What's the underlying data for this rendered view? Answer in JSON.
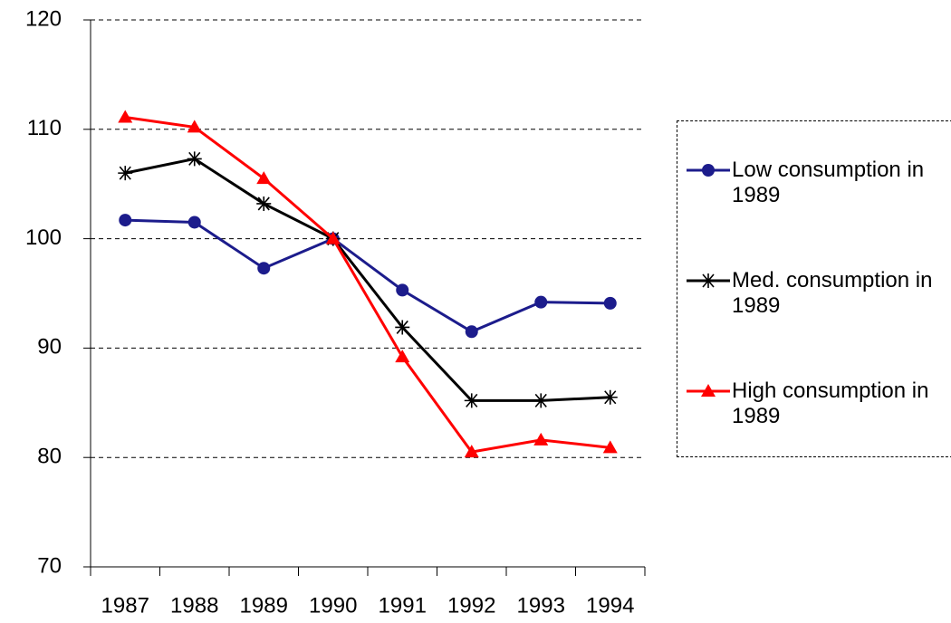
{
  "chart_data": {
    "type": "line",
    "categories": [
      "1987",
      "1988",
      "1989",
      "1990",
      "1991",
      "1992",
      "1993",
      "1994"
    ],
    "series": [
      {
        "name": "Low consumption in 1989",
        "color": "#1c1c8c",
        "marker": "circle",
        "values": [
          101.7,
          101.5,
          97.3,
          100,
          95.3,
          91.5,
          94.2,
          94.1
        ]
      },
      {
        "name": "Med. consumption in 1989",
        "color": "#000000",
        "marker": "asterisk",
        "values": [
          106,
          107.3,
          103.2,
          100,
          91.9,
          85.2,
          85.2,
          85.5
        ]
      },
      {
        "name": "High consumption in 1989",
        "color": "#ff0000",
        "marker": "triangle",
        "values": [
          111.1,
          110.2,
          105.5,
          100,
          89.2,
          80.5,
          81.6,
          80.9
        ]
      }
    ],
    "ylim": [
      70,
      120
    ],
    "yticks": [
      70,
      80,
      90,
      100,
      110,
      120
    ],
    "grid": true,
    "legend": "right"
  }
}
